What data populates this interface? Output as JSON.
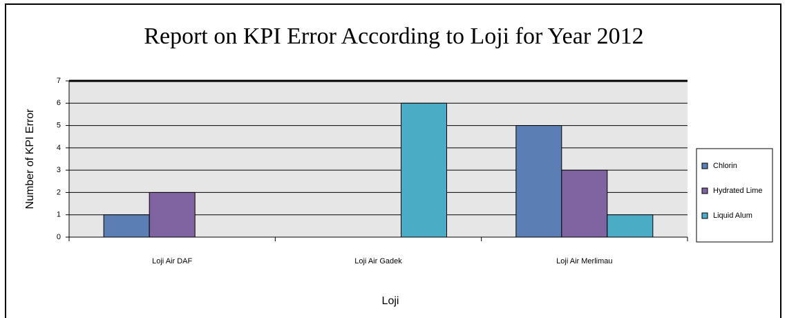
{
  "chart_data": {
    "type": "bar",
    "title": "Report on KPI Error According to Loji for Year 2012",
    "x_label": "Loji",
    "y_label": "Number of KPI Error",
    "categories": [
      "Loji Air DAF",
      "Loji Air Gadek",
      "Loji Air Merlimau"
    ],
    "series": [
      {
        "name": "Chlorin",
        "color": "#5b7fb5",
        "values": [
          1,
          0,
          5
        ]
      },
      {
        "name": "Hydrated Lime",
        "color": "#8064a2",
        "values": [
          2,
          0,
          3
        ]
      },
      {
        "name": "Liquid Alum",
        "color": "#4bacc6",
        "values": [
          0,
          6,
          1
        ]
      }
    ],
    "ylim": [
      0,
      7
    ],
    "yticks": [
      0,
      1,
      2,
      3,
      4,
      5,
      6,
      7
    ],
    "grid": true,
    "legend": "right"
  }
}
